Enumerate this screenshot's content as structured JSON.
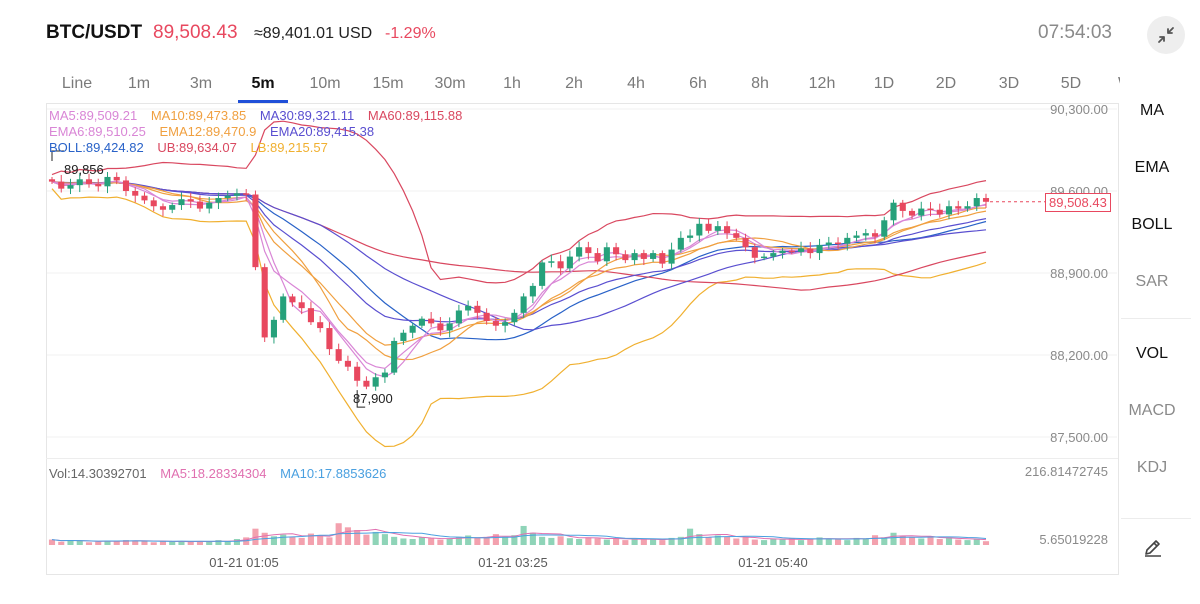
{
  "header": {
    "pair": "BTC/USDT",
    "price": "89,508.43",
    "usd_value": "≈89,401.01 USD",
    "change": "-1.29%",
    "time": "07:54:03"
  },
  "timeframes": [
    "Line",
    "1m",
    "3m",
    "5m",
    "10m",
    "15m",
    "30m",
    "1h",
    "2h",
    "4h",
    "6h",
    "8h",
    "12h",
    "1D",
    "2D",
    "3D",
    "5D",
    "W"
  ],
  "active_timeframe": "5m",
  "legend": {
    "ma5": "MA5:89,509.21",
    "ma10": "MA10:89,473.85",
    "ma30": "MA30:89,321.11",
    "ma60": "MA60:89,115.88",
    "ema6": "EMA6:89,510.25",
    "ema12": "EMA12:89,470.9",
    "ema20": "EMA20:89,415.38",
    "boll": "BOLL:89,424.82",
    "ub": "UB:89,634.07",
    "lb": "LB:89,215.57",
    "vol": "Vol:14.30392701",
    "vol_ma5": "MA5:18.28334304",
    "vol_ma10": "MA10:17.8853626"
  },
  "y_axis": [
    "90,300.00",
    "89,600.00",
    "88,900.00",
    "88,200.00",
    "87,500.00"
  ],
  "vol_axis": {
    "max": "216.81472745",
    "min": "5.65019228"
  },
  "x_axis": [
    "01-21 01:05",
    "01-21 03:25",
    "01-21 05:40"
  ],
  "high_marker": "89,856",
  "low_marker": "87,900",
  "current_price_tag": "89,508.43",
  "side_panel": [
    "MA",
    "EMA",
    "BOLL",
    "SAR",
    "VOL",
    "MACD",
    "KDJ"
  ],
  "colors": {
    "up": "#26a17b",
    "down": "#e8485f",
    "accent": "#1f4fd8"
  },
  "chart_data": {
    "type": "candlestick",
    "ylim": [
      87400,
      90400
    ],
    "closes": [
      89680,
      89620,
      89650,
      89700,
      89660,
      89640,
      89720,
      89690,
      89600,
      89560,
      89520,
      89470,
      89440,
      89480,
      89530,
      89510,
      89450,
      89500,
      89540,
      89560,
      89580,
      89570,
      88950,
      88350,
      88500,
      88700,
      88650,
      88600,
      88480,
      88430,
      88250,
      88150,
      88100,
      87980,
      87930,
      88010,
      88050,
      88320,
      88390,
      88450,
      88510,
      88470,
      88410,
      88470,
      88580,
      88620,
      88560,
      88490,
      88450,
      88480,
      88560,
      88700,
      88790,
      88990,
      89000,
      88940,
      89040,
      89120,
      89070,
      89000,
      89120,
      89060,
      89010,
      89070,
      89020,
      89070,
      88980,
      89100,
      89200,
      89220,
      89320,
      89260,
      89300,
      89240,
      89200,
      89120,
      89030,
      89040,
      89070,
      89090,
      89080,
      89110,
      89070,
      89140,
      89160,
      89150,
      89200,
      89220,
      89240,
      89210,
      89350,
      89500,
      89430,
      89390,
      89450,
      89440,
      89400,
      89470,
      89450,
      89470,
      89540,
      89508
    ],
    "volumes": [
      20,
      12,
      18,
      15,
      10,
      12,
      16,
      15,
      18,
      16,
      14,
      10,
      15,
      12,
      14,
      11,
      14,
      12,
      18,
      13,
      22,
      28,
      60,
      45,
      32,
      38,
      30,
      26,
      42,
      35,
      28,
      80,
      65,
      55,
      38,
      48,
      40,
      30,
      24,
      22,
      28,
      25,
      20,
      22,
      30,
      35,
      28,
      26,
      40,
      30,
      36,
      70,
      45,
      30,
      26,
      32,
      25,
      22,
      28,
      24,
      20,
      25,
      18,
      22,
      20,
      22,
      18,
      26,
      30,
      60,
      40,
      28,
      35,
      30,
      24,
      28,
      20,
      18,
      22,
      20,
      25,
      18,
      22,
      28,
      24,
      22,
      18,
      26,
      24,
      36,
      28,
      45,
      34,
      28,
      24,
      30,
      22,
      26,
      20,
      18,
      22,
      14
    ],
    "series": [
      {
        "name": "MA5",
        "last": 89509.21
      },
      {
        "name": "MA10",
        "last": 89473.85
      },
      {
        "name": "MA30",
        "last": 89321.11
      },
      {
        "name": "MA60",
        "last": 89115.88
      },
      {
        "name": "EMA6",
        "last": 89510.25
      },
      {
        "name": "EMA12",
        "last": 89470.9
      },
      {
        "name": "EMA20",
        "last": 89415.38
      },
      {
        "name": "BOLL",
        "last": 89424.82
      },
      {
        "name": "UB",
        "last": 89634.07
      },
      {
        "name": "LB",
        "last": 89215.57
      }
    ],
    "high": 89856,
    "low": 87900
  }
}
